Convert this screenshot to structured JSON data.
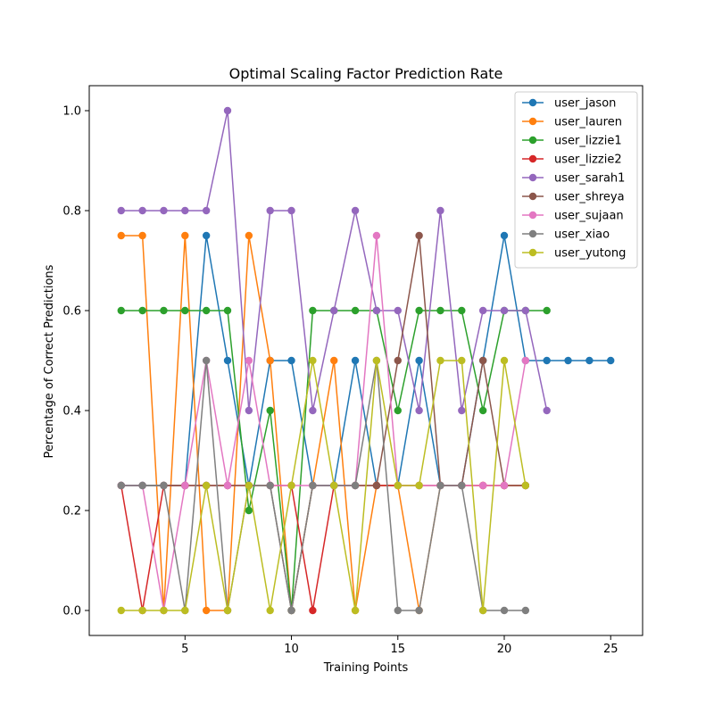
{
  "chart_data": {
    "type": "line",
    "title": "Optimal Scaling Factor Prediction Rate",
    "xlabel": "Training Points",
    "ylabel": "Percentage of Correct Predictions",
    "xlim": [
      0.5,
      26.5
    ],
    "ylim": [
      -0.05,
      1.05
    ],
    "xticks": [
      5,
      10,
      15,
      20,
      25
    ],
    "yticks": [
      0.0,
      0.2,
      0.4,
      0.6,
      0.8,
      1.0
    ],
    "xtick_labels": [
      "5",
      "10",
      "15",
      "20",
      "25"
    ],
    "ytick_labels": [
      "0.0",
      "0.2",
      "0.4",
      "0.6",
      "0.8",
      "1.0"
    ],
    "grid": false,
    "legend_position": "top-right",
    "series": [
      {
        "name": "user_jason",
        "color": "#1f77b4",
        "x": [
          2,
          3,
          4,
          5,
          6,
          7,
          8,
          9,
          10,
          11,
          12,
          13,
          14,
          15,
          16,
          17,
          18,
          19,
          20,
          21,
          22,
          23,
          24,
          25
        ],
        "y": [
          0.25,
          0.25,
          0.25,
          0.25,
          0.75,
          0.5,
          0.25,
          0.5,
          0.5,
          0.25,
          0.25,
          0.5,
          0.25,
          0.25,
          0.5,
          0.25,
          0.25,
          0.5,
          0.75,
          0.5,
          0.5,
          0.5,
          0.5,
          0.5
        ]
      },
      {
        "name": "user_lauren",
        "color": "#ff7f0e",
        "x": [
          2,
          3,
          4,
          5,
          6,
          7,
          8,
          9,
          10,
          11,
          12,
          13,
          14,
          15,
          16,
          17,
          18,
          19,
          20,
          21
        ],
        "y": [
          0.75,
          0.75,
          0.0,
          0.75,
          0.0,
          0.0,
          0.75,
          0.5,
          0.0,
          0.25,
          0.5,
          0.0,
          0.25,
          0.25,
          0.0,
          0.25,
          0.25,
          0.25,
          0.25,
          0.25
        ]
      },
      {
        "name": "user_lizzie1",
        "color": "#2ca02c",
        "x": [
          2,
          3,
          4,
          5,
          6,
          7,
          8,
          9,
          10,
          11,
          12,
          13,
          14,
          15,
          16,
          17,
          18,
          19,
          20,
          21,
          22
        ],
        "y": [
          0.6,
          0.6,
          0.6,
          0.6,
          0.6,
          0.6,
          0.2,
          0.4,
          0.0,
          0.6,
          0.6,
          0.6,
          0.6,
          0.4,
          0.6,
          0.6,
          0.6,
          0.4,
          0.6,
          0.6,
          0.6
        ]
      },
      {
        "name": "user_lizzie2",
        "color": "#d62728",
        "x": [
          2,
          3,
          4,
          5,
          6,
          7,
          8,
          9,
          10,
          11,
          12,
          13,
          14,
          15,
          16,
          17,
          18,
          19,
          20,
          21
        ],
        "y": [
          0.25,
          0.0,
          0.25,
          0.25,
          0.25,
          0.25,
          0.25,
          0.25,
          0.25,
          0.0,
          0.25,
          0.25,
          0.25,
          0.25,
          0.25,
          0.25,
          0.25,
          0.25,
          0.25,
          0.25
        ]
      },
      {
        "name": "user_sarah1",
        "color": "#9467bd",
        "x": [
          2,
          3,
          4,
          5,
          6,
          7,
          8,
          9,
          10,
          11,
          12,
          13,
          14,
          15,
          16,
          17,
          18,
          19,
          20,
          21,
          22
        ],
        "y": [
          0.8,
          0.8,
          0.8,
          0.8,
          0.8,
          1.0,
          0.4,
          0.8,
          0.8,
          0.4,
          0.6,
          0.8,
          0.6,
          0.6,
          0.4,
          0.8,
          0.4,
          0.6,
          0.6,
          0.6,
          0.4
        ]
      },
      {
        "name": "user_shreya",
        "color": "#8c564b",
        "x": [
          2,
          3,
          4,
          5,
          6,
          7,
          8,
          9,
          10,
          11,
          12,
          13,
          14,
          15,
          16,
          17,
          18,
          19,
          20,
          21
        ],
        "y": [
          0.25,
          0.25,
          0.25,
          0.25,
          0.25,
          0.25,
          0.25,
          0.25,
          0.0,
          0.25,
          0.25,
          0.25,
          0.25,
          0.5,
          0.75,
          0.25,
          0.25,
          0.5,
          0.25,
          0.25
        ]
      },
      {
        "name": "user_sujaan",
        "color": "#e377c2",
        "x": [
          2,
          3,
          4,
          5,
          6,
          7,
          8,
          9,
          10,
          11,
          12,
          13,
          14,
          15,
          16,
          17,
          18,
          19,
          20,
          21
        ],
        "y": [
          0.25,
          0.25,
          0.0,
          0.25,
          0.5,
          0.25,
          0.5,
          0.25,
          0.25,
          0.25,
          0.25,
          0.25,
          0.75,
          0.25,
          0.25,
          0.25,
          0.25,
          0.25,
          0.25,
          0.5
        ]
      },
      {
        "name": "user_xiao",
        "color": "#7f7f7f",
        "x": [
          2,
          3,
          4,
          5,
          6,
          7,
          8,
          9,
          10,
          11,
          12,
          13,
          14,
          15,
          16,
          17,
          18,
          19,
          20,
          21
        ],
        "y": [
          0.25,
          0.25,
          0.25,
          0.0,
          0.5,
          0.0,
          0.25,
          0.25,
          0.0,
          0.25,
          0.25,
          0.25,
          0.5,
          0.0,
          0.0,
          0.25,
          0.25,
          0.0,
          0.0,
          0.0
        ]
      },
      {
        "name": "user_yutong",
        "color": "#bcbd22",
        "x": [
          2,
          3,
          4,
          5,
          6,
          7,
          8,
          9,
          10,
          11,
          12,
          13,
          14,
          15,
          16,
          17,
          18,
          19,
          20,
          21
        ],
        "y": [
          0.0,
          0.0,
          0.0,
          0.0,
          0.25,
          0.0,
          0.25,
          0.0,
          0.25,
          0.5,
          0.25,
          0.0,
          0.5,
          0.25,
          0.25,
          0.5,
          0.5,
          0.0,
          0.5,
          0.25
        ]
      }
    ]
  }
}
